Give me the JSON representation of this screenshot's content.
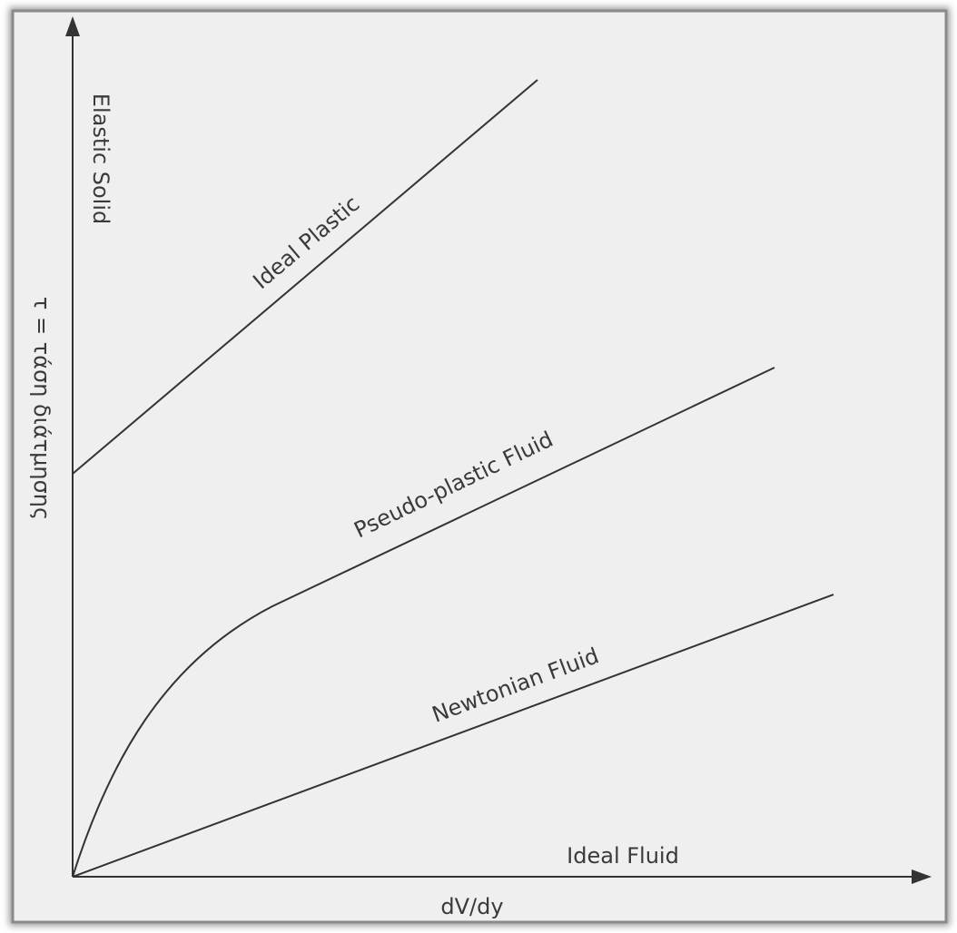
{
  "diagram": {
    "y_axis_label": "τ = τάση διάτμησης",
    "x_axis_label": "dV/dy",
    "curves": {
      "elastic_solid": "Elastic Solid",
      "ideal_plastic": "Ideal Plastic",
      "pseudo_plastic": "Pseudo-plastic Fluid",
      "newtonian": "Newtonian Fluid",
      "ideal_fluid": "Ideal Fluid"
    }
  }
}
